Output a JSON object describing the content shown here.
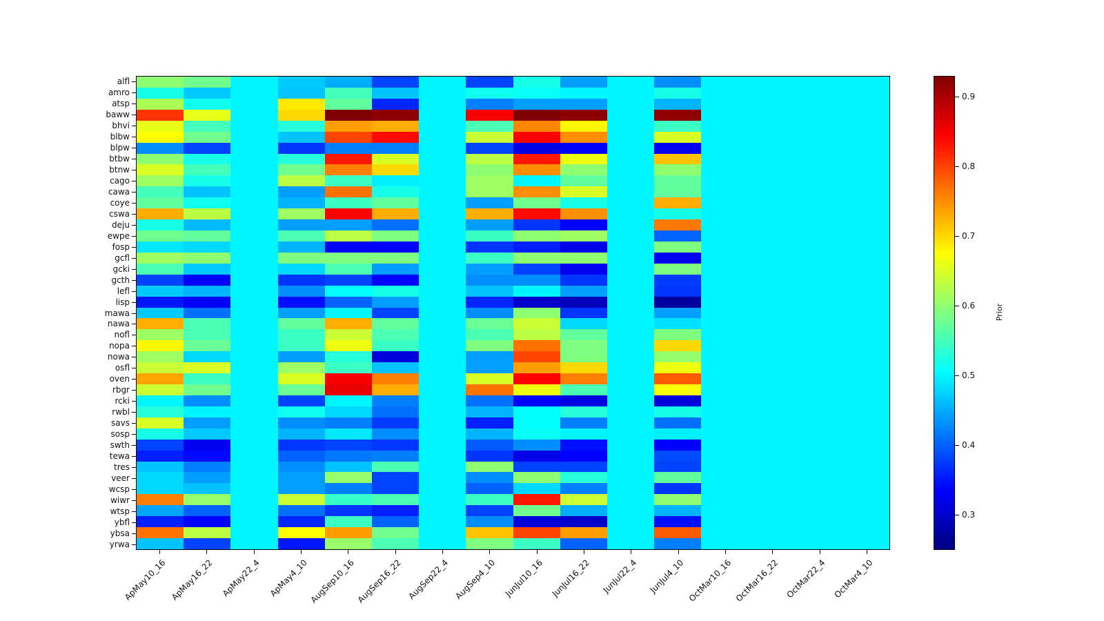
{
  "figure": {
    "background": "#ffffff"
  },
  "chart_data": {
    "type": "heatmap",
    "colormap": "jet",
    "title": "",
    "xlabel": "",
    "ylabel": "",
    "legend_position": "right-colorbar",
    "grid": false,
    "columns": [
      "ApMay10_16",
      "ApMay16_22",
      "ApMay22_4",
      "ApMay4_10",
      "AugSep10_16",
      "AugSep16_22",
      "AugSep22_4",
      "AugSep4_10",
      "JunJul10_16",
      "JunJul16_22",
      "JunJul22_4",
      "JunJul4_10",
      "OctMar10_16",
      "OctMar16_22",
      "OctMar22_4",
      "OctMar4_10"
    ],
    "rows": [
      "alfl",
      "amro",
      "atsp",
      "baww",
      "bhvi",
      "blbw",
      "blpw",
      "btbw",
      "btnw",
      "cago",
      "cawa",
      "coye",
      "cswa",
      "deju",
      "ewpe",
      "fosp",
      "gcfl",
      "gcki",
      "gcth",
      "lefl",
      "lisp",
      "mawa",
      "nawa",
      "nofl",
      "nopa",
      "nowa",
      "osfl",
      "oven",
      "rbgr",
      "rcki",
      "rwbl",
      "savs",
      "sosp",
      "swth",
      "tewa",
      "tres",
      "veer",
      "wcsp",
      "wiwr",
      "wtsp",
      "ybfl",
      "ybsa",
      "yrwa"
    ],
    "values": [
      [
        0.6,
        0.58,
        0.5,
        0.47,
        0.45,
        0.38,
        0.5,
        0.38,
        0.52,
        0.44,
        0.5,
        0.43,
        0.5,
        0.5,
        0.5,
        0.5
      ],
      [
        0.52,
        0.47,
        0.5,
        0.465,
        0.55,
        0.465,
        0.5,
        0.515,
        0.51,
        0.5,
        0.5,
        0.52,
        0.5,
        0.5,
        0.5,
        0.5
      ],
      [
        0.62,
        0.515,
        0.5,
        0.69,
        0.57,
        0.36,
        0.5,
        0.42,
        0.44,
        0.44,
        0.5,
        0.455,
        0.5,
        0.5,
        0.5,
        0.5
      ],
      [
        0.81,
        0.66,
        0.5,
        0.7,
        0.93,
        0.92,
        0.5,
        0.85,
        0.93,
        0.92,
        0.5,
        0.92,
        0.5,
        0.5,
        0.5,
        0.5
      ],
      [
        0.66,
        0.55,
        0.5,
        0.53,
        0.74,
        0.73,
        0.5,
        0.555,
        0.755,
        0.68,
        0.5,
        0.545,
        0.5,
        0.5,
        0.5,
        0.5
      ],
      [
        0.675,
        0.58,
        0.5,
        0.465,
        0.8,
        0.84,
        0.5,
        0.64,
        0.845,
        0.75,
        0.5,
        0.65,
        0.5,
        0.5,
        0.5,
        0.5
      ],
      [
        0.43,
        0.38,
        0.5,
        0.37,
        0.42,
        0.42,
        0.5,
        0.38,
        0.315,
        0.335,
        0.5,
        0.325,
        0.5,
        0.5,
        0.5,
        0.5
      ],
      [
        0.6,
        0.52,
        0.5,
        0.53,
        0.83,
        0.65,
        0.5,
        0.63,
        0.83,
        0.665,
        0.5,
        0.715,
        0.5,
        0.5,
        0.5,
        0.5
      ],
      [
        0.65,
        0.55,
        0.5,
        0.58,
        0.76,
        0.7,
        0.5,
        0.6,
        0.75,
        0.6,
        0.5,
        0.6,
        0.5,
        0.5,
        0.5,
        0.5
      ],
      [
        0.61,
        0.52,
        0.5,
        0.63,
        0.545,
        0.495,
        0.5,
        0.61,
        0.5,
        0.57,
        0.5,
        0.57,
        0.5,
        0.5,
        0.5,
        0.5
      ],
      [
        0.55,
        0.465,
        0.5,
        0.44,
        0.77,
        0.52,
        0.5,
        0.61,
        0.75,
        0.65,
        0.5,
        0.57,
        0.5,
        0.5,
        0.5,
        0.5
      ],
      [
        0.57,
        0.515,
        0.5,
        0.455,
        0.545,
        0.57,
        0.5,
        0.44,
        0.58,
        0.52,
        0.5,
        0.73,
        0.5,
        0.5,
        0.5,
        0.5
      ],
      [
        0.73,
        0.63,
        0.5,
        0.61,
        0.845,
        0.73,
        0.5,
        0.73,
        0.84,
        0.75,
        0.5,
        0.52,
        0.5,
        0.5,
        0.5,
        0.5
      ],
      [
        0.52,
        0.46,
        0.5,
        0.44,
        0.44,
        0.41,
        0.5,
        0.44,
        0.37,
        0.335,
        0.5,
        0.765,
        0.5,
        0.5,
        0.5,
        0.5
      ],
      [
        0.58,
        0.57,
        0.5,
        0.555,
        0.63,
        0.59,
        0.5,
        0.545,
        0.6,
        0.61,
        0.5,
        0.4,
        0.5,
        0.5,
        0.5,
        0.5
      ],
      [
        0.49,
        0.48,
        0.5,
        0.455,
        0.33,
        0.335,
        0.5,
        0.37,
        0.355,
        0.32,
        0.5,
        0.59,
        0.5,
        0.5,
        0.5,
        0.5
      ],
      [
        0.61,
        0.6,
        0.5,
        0.59,
        0.59,
        0.59,
        0.5,
        0.545,
        0.6,
        0.6,
        0.5,
        0.325,
        0.5,
        0.5,
        0.5,
        0.5
      ],
      [
        0.555,
        0.47,
        0.5,
        0.48,
        0.555,
        0.44,
        0.5,
        0.44,
        0.38,
        0.325,
        0.5,
        0.59,
        0.5,
        0.5,
        0.5,
        0.5
      ],
      [
        0.38,
        0.33,
        0.5,
        0.37,
        0.38,
        0.335,
        0.5,
        0.43,
        0.43,
        0.37,
        0.5,
        0.375,
        0.5,
        0.5,
        0.5,
        0.5
      ],
      [
        0.47,
        0.455,
        0.5,
        0.43,
        0.505,
        0.52,
        0.5,
        0.465,
        0.5,
        0.44,
        0.5,
        0.37,
        0.5,
        0.5,
        0.5,
        0.5
      ],
      [
        0.35,
        0.33,
        0.5,
        0.345,
        0.4,
        0.44,
        0.5,
        0.36,
        0.3,
        0.29,
        0.5,
        0.27,
        0.5,
        0.5,
        0.5,
        0.5
      ],
      [
        0.47,
        0.41,
        0.5,
        0.44,
        0.5,
        0.38,
        0.5,
        0.43,
        0.6,
        0.37,
        0.5,
        0.44,
        0.5,
        0.5,
        0.5,
        0.5
      ],
      [
        0.73,
        0.555,
        0.5,
        0.57,
        0.73,
        0.57,
        0.5,
        0.575,
        0.64,
        0.48,
        0.5,
        0.485,
        0.5,
        0.5,
        0.5,
        0.5
      ],
      [
        0.61,
        0.555,
        0.5,
        0.545,
        0.64,
        0.555,
        0.5,
        0.555,
        0.63,
        0.57,
        0.5,
        0.59,
        0.5,
        0.5,
        0.5,
        0.5
      ],
      [
        0.68,
        0.575,
        0.5,
        0.545,
        0.665,
        0.545,
        0.5,
        0.59,
        0.77,
        0.59,
        0.5,
        0.7,
        0.5,
        0.5,
        0.5,
        0.5
      ],
      [
        0.61,
        0.48,
        0.5,
        0.44,
        0.53,
        0.31,
        0.5,
        0.44,
        0.8,
        0.59,
        0.5,
        0.605,
        0.5,
        0.5,
        0.5,
        0.5
      ],
      [
        0.64,
        0.65,
        0.5,
        0.61,
        0.545,
        0.465,
        0.5,
        0.44,
        0.74,
        0.7,
        0.5,
        0.665,
        0.5,
        0.5,
        0.5,
        0.5
      ],
      [
        0.735,
        0.545,
        0.5,
        0.65,
        0.85,
        0.76,
        0.5,
        0.65,
        0.845,
        0.76,
        0.5,
        0.785,
        0.5,
        0.5,
        0.5,
        0.5
      ],
      [
        0.64,
        0.58,
        0.5,
        0.575,
        0.86,
        0.73,
        0.5,
        0.77,
        0.665,
        0.555,
        0.5,
        0.67,
        0.5,
        0.5,
        0.5,
        0.5
      ],
      [
        0.5,
        0.43,
        0.5,
        0.38,
        0.5,
        0.42,
        0.5,
        0.41,
        0.335,
        0.315,
        0.5,
        0.31,
        0.5,
        0.5,
        0.5,
        0.5
      ],
      [
        0.53,
        0.5,
        0.5,
        0.515,
        0.48,
        0.41,
        0.5,
        0.455,
        0.505,
        0.53,
        0.5,
        0.52,
        0.5,
        0.5,
        0.5,
        0.5
      ],
      [
        0.65,
        0.44,
        0.5,
        0.43,
        0.42,
        0.375,
        0.5,
        0.355,
        0.505,
        0.42,
        0.5,
        0.41,
        0.5,
        0.5,
        0.5,
        0.5
      ],
      [
        0.52,
        0.47,
        0.5,
        0.455,
        0.49,
        0.43,
        0.5,
        0.455,
        0.51,
        0.5,
        0.5,
        0.495,
        0.5,
        0.5,
        0.5,
        0.5
      ],
      [
        0.38,
        0.325,
        0.5,
        0.37,
        0.38,
        0.37,
        0.5,
        0.395,
        0.43,
        0.345,
        0.5,
        0.335,
        0.5,
        0.5,
        0.5,
        0.5
      ],
      [
        0.355,
        0.34,
        0.5,
        0.4,
        0.415,
        0.42,
        0.5,
        0.37,
        0.32,
        0.335,
        0.5,
        0.385,
        0.5,
        0.5,
        0.5,
        0.5
      ],
      [
        0.465,
        0.42,
        0.5,
        0.43,
        0.465,
        0.555,
        0.5,
        0.6,
        0.38,
        0.38,
        0.5,
        0.38,
        0.5,
        0.5,
        0.5,
        0.5
      ],
      [
        0.48,
        0.44,
        0.5,
        0.44,
        0.605,
        0.38,
        0.5,
        0.43,
        0.6,
        0.53,
        0.5,
        0.57,
        0.5,
        0.5,
        0.5,
        0.5
      ],
      [
        0.48,
        0.465,
        0.5,
        0.44,
        0.42,
        0.38,
        0.5,
        0.4,
        0.48,
        0.42,
        0.5,
        0.37,
        0.5,
        0.5,
        0.5,
        0.5
      ],
      [
        0.76,
        0.605,
        0.5,
        0.64,
        0.54,
        0.555,
        0.5,
        0.545,
        0.83,
        0.64,
        0.5,
        0.6,
        0.5,
        0.5,
        0.5,
        0.5
      ],
      [
        0.445,
        0.4,
        0.5,
        0.41,
        0.37,
        0.355,
        0.5,
        0.38,
        0.58,
        0.45,
        0.5,
        0.455,
        0.5,
        0.5,
        0.5,
        0.5
      ],
      [
        0.355,
        0.335,
        0.5,
        0.36,
        0.545,
        0.4,
        0.5,
        0.43,
        0.31,
        0.3,
        0.5,
        0.345,
        0.5,
        0.5,
        0.5,
        0.5
      ],
      [
        0.77,
        0.63,
        0.5,
        0.675,
        0.74,
        0.58,
        0.5,
        0.715,
        0.8,
        0.74,
        0.5,
        0.785,
        0.5,
        0.5,
        0.5,
        0.5
      ],
      [
        0.465,
        0.38,
        0.5,
        0.35,
        0.605,
        0.555,
        0.5,
        0.59,
        0.545,
        0.4,
        0.5,
        0.42,
        0.5,
        0.5,
        0.5,
        0.5
      ]
    ],
    "colorbar": {
      "label": "Prior",
      "ticks": [
        0.9,
        0.8,
        0.7,
        0.6,
        0.5,
        0.4,
        0.3
      ],
      "vmin": 0.25,
      "vmax": 0.93,
      "top_color": "#800000",
      "bottom_color": "#000080",
      "mid_color": "#00e5ff"
    }
  }
}
